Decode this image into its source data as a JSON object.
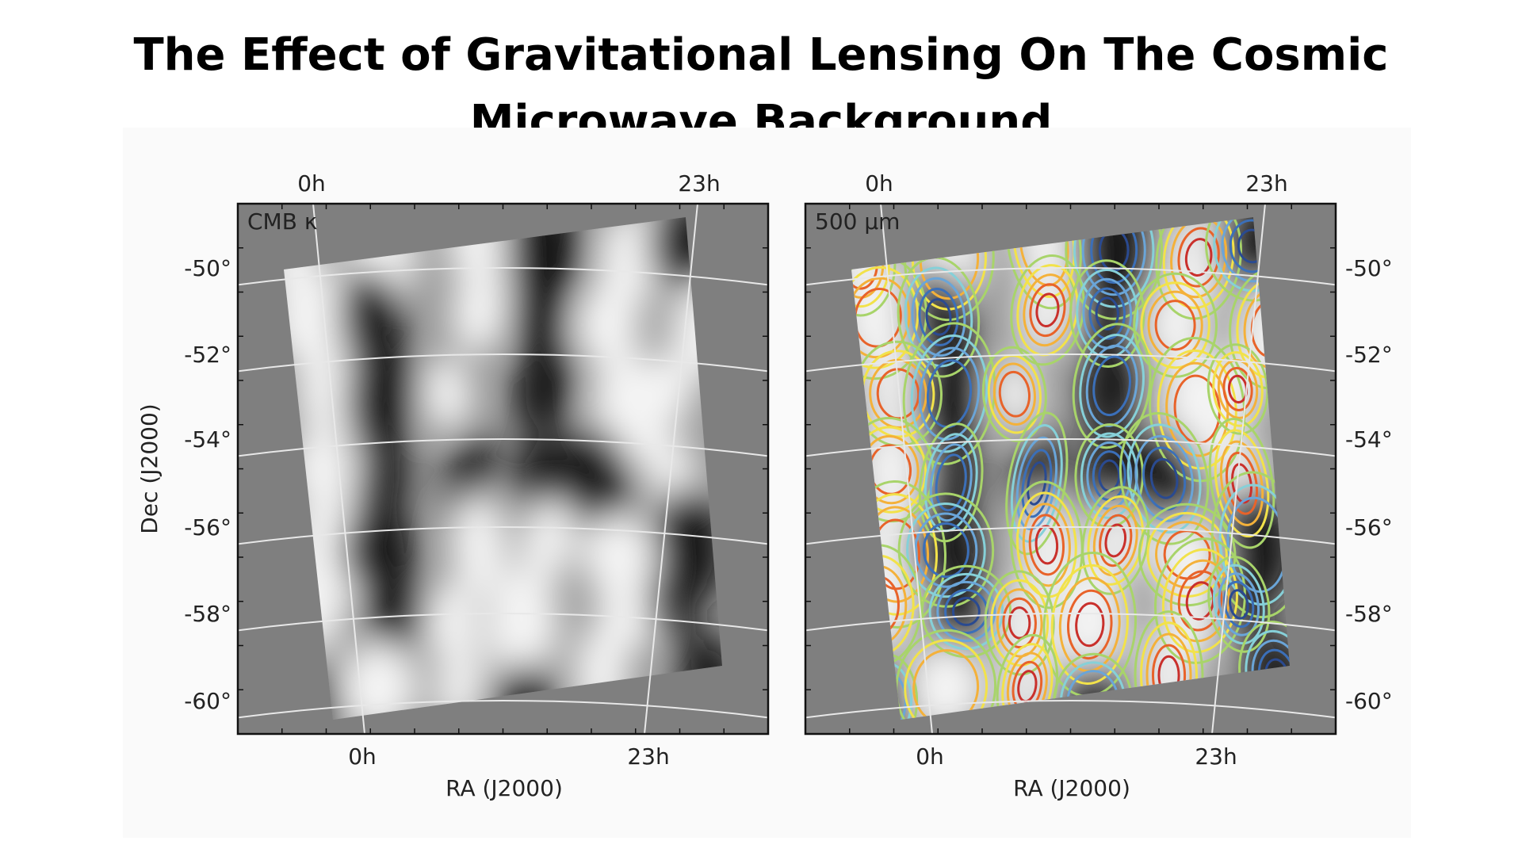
{
  "title": "The Effect of Gravitational Lensing On The Cosmic Microwave Background",
  "panels": [
    {
      "label": "CMB κ",
      "top_ticks": [
        "0h",
        "23h"
      ],
      "bottom_ticks": [
        "0h",
        "23h"
      ],
      "x_label": "RA (J2000)",
      "y_label": "Dec (J2000)",
      "dec_ticks": [
        "-50°",
        "-52°",
        "-54°",
        "-56°",
        "-58°",
        "-60°"
      ]
    },
    {
      "label": "500 μm",
      "top_ticks": [
        "0h",
        "23h"
      ],
      "bottom_ticks": [
        "0h",
        "23h"
      ],
      "x_label": "RA (J2000)",
      "dec_ticks": [
        "-50°",
        "-52°",
        "-54°",
        "-56°",
        "-58°",
        "-60°"
      ]
    }
  ]
}
